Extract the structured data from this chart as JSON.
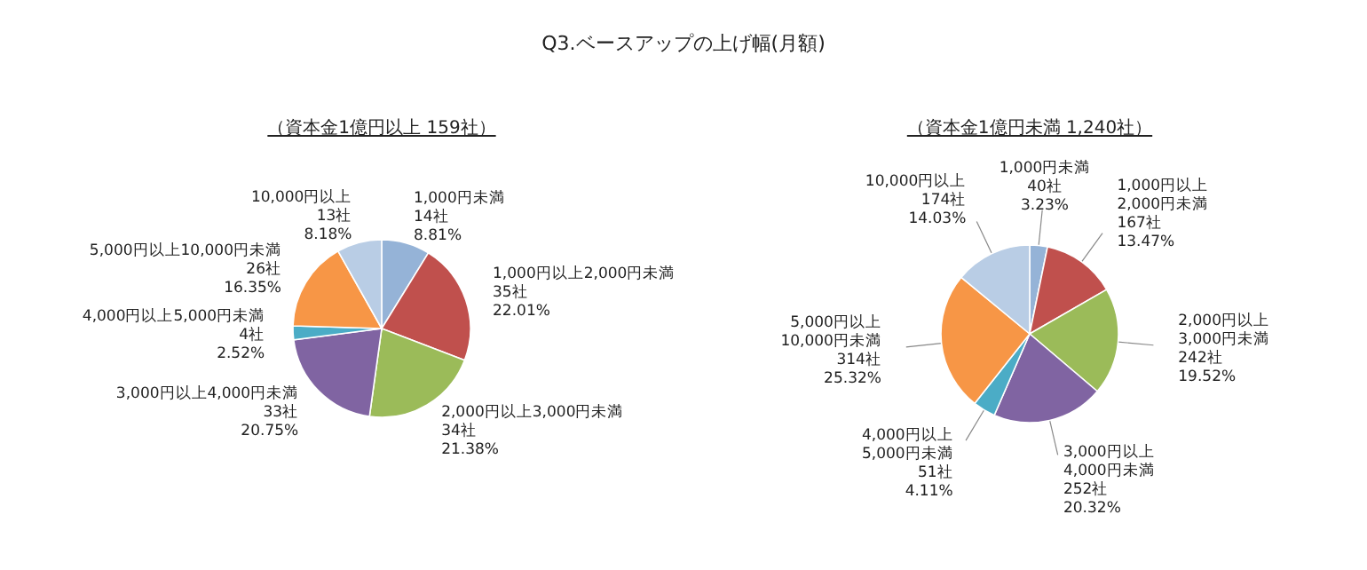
{
  "chart_data": [
    {
      "type": "pie",
      "title": "Q3.ベースアップの上げ幅(月額)",
      "subtitle": "（資本金1億円以上 159社）",
      "categories": [
        "1,000円未満",
        "1,000円以上2,000円未満",
        "2,000円以上3,000円未満",
        "3,000円以上4,000円未満",
        "4,000円以上5,000円未満",
        "5,000円以上10,000円未満",
        "10,000円以上"
      ],
      "values": [
        14,
        35,
        34,
        33,
        4,
        26,
        13
      ],
      "value_labels": [
        "14社\n8.81%",
        "35社\n22.01%",
        "34社\n21.38%",
        "33社\n20.75%",
        "4社\n2.52%",
        "26社\n16.35%",
        "13社\n8.18%"
      ],
      "colors": [
        "#95b3d7",
        "#c0504d",
        "#9bbb59",
        "#8064a2",
        "#4bacc6",
        "#f79646",
        "#b9cde5"
      ]
    },
    {
      "type": "pie",
      "subtitle": "（資本金1億円未満 1,240社）",
      "categories": [
        "1,000円未満",
        "1,000円以上\n2,000円未満",
        "2,000円以上\n3,000円未満",
        "3,000円以上\n4,000円未満",
        "4,000円以上\n5,000円未満",
        "5,000円以上\n10,000円未満",
        "10,000円以上"
      ],
      "values": [
        40,
        167,
        242,
        252,
        51,
        314,
        174
      ],
      "value_labels": [
        "40社\n3.23%",
        "167社\n13.47%",
        "242社\n19.52%",
        "252社\n20.32%",
        "51社\n4.11%",
        "314社\n25.32%",
        "174社\n14.03%"
      ],
      "colors": [
        "#95b3d7",
        "#c0504d",
        "#9bbb59",
        "#8064a2",
        "#4bacc6",
        "#f79646",
        "#b9cde5"
      ]
    }
  ]
}
